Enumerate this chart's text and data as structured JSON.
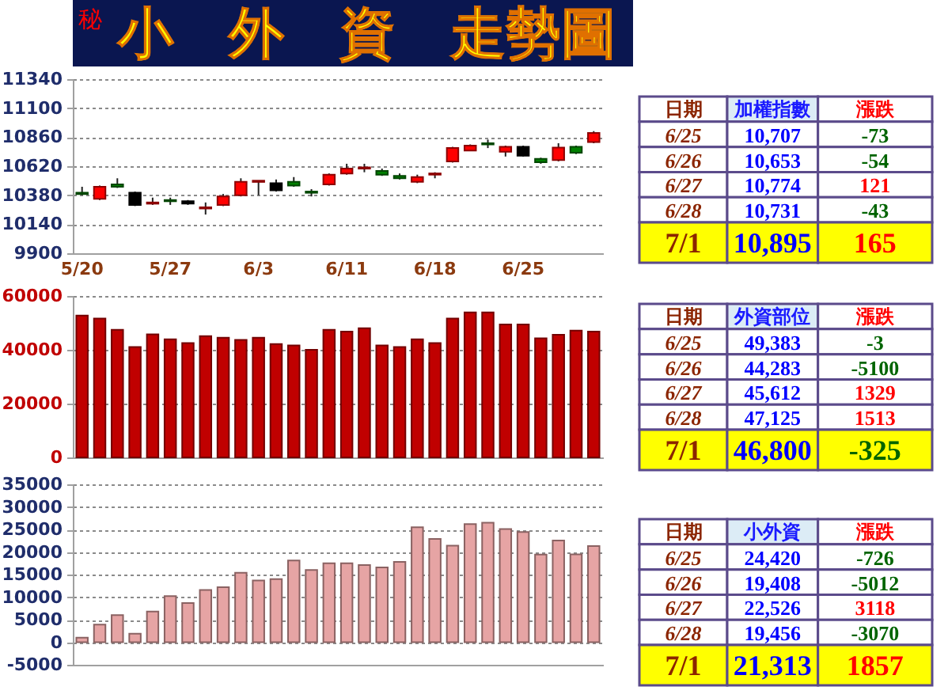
{
  "chart_data": [
    {
      "type": "candlestick",
      "title": "小　外　資　走勢圖",
      "annotations": [
        "秘"
      ],
      "categories": [
        "5/20",
        null,
        null,
        null,
        null,
        "5/27",
        null,
        null,
        null,
        null,
        "6/3",
        null,
        null,
        null,
        null,
        "6/11",
        null,
        null,
        null,
        null,
        "6/18",
        null,
        null,
        null,
        null,
        "6/25",
        null,
        null,
        null,
        null
      ],
      "ohlc": [
        [
          10400,
          10450,
          10380,
          10390
        ],
        [
          10350,
          10460,
          10340,
          10450
        ],
        [
          10470,
          10520,
          10440,
          10450
        ],
        [
          10400,
          10410,
          10290,
          10300
        ],
        [
          10310,
          10360,
          10300,
          10320
        ],
        [
          10340,
          10360,
          10300,
          10330
        ],
        [
          10330,
          10340,
          10300,
          10310
        ],
        [
          10270,
          10320,
          10220,
          10280
        ],
        [
          10300,
          10390,
          10290,
          10370
        ],
        [
          10380,
          10520,
          10370,
          10490
        ],
        [
          10490,
          10500,
          10380,
          10500
        ],
        [
          10480,
          10510,
          10410,
          10420
        ],
        [
          10490,
          10530,
          10450,
          10460
        ],
        [
          10410,
          10430,
          10370,
          10400
        ],
        [
          10470,
          10560,
          10460,
          10550
        ],
        [
          10560,
          10640,
          10550,
          10600
        ],
        [
          10600,
          10640,
          10570,
          10610
        ],
        [
          10580,
          10600,
          10540,
          10550
        ],
        [
          10540,
          10560,
          10510,
          10520
        ],
        [
          10490,
          10550,
          10480,
          10530
        ],
        [
          10550,
          10570,
          10520,
          10560
        ],
        [
          10660,
          10780,
          10650,
          10770
        ],
        [
          10750,
          10800,
          10750,
          10790
        ],
        [
          10810,
          10840,
          10770,
          10800
        ],
        [
          10740,
          10790,
          10700,
          10780
        ],
        [
          10780,
          10790,
          10700,
          10707
        ],
        [
          10680,
          10690,
          10640,
          10653
        ],
        [
          10670,
          10810,
          10660,
          10774
        ],
        [
          10780,
          10790,
          10720,
          10731
        ],
        [
          10820,
          10910,
          10810,
          10895
        ]
      ],
      "colors": [
        "#008000",
        "#ff0000",
        "#008000",
        "#000000",
        "#ff0000",
        "#008000",
        "#000000",
        "#ff0000",
        "#ff0000",
        "#ff0000",
        "#ff0000",
        "#000000",
        "#008000",
        "#008000",
        "#ff0000",
        "#ff0000",
        "#ff0000",
        "#008000",
        "#008000",
        "#ff0000",
        "#ff0000",
        "#ff0000",
        "#ff0000",
        "#008000",
        "#ff0000",
        "#000000",
        "#008000",
        "#ff0000",
        "#008000",
        "#ff0000"
      ],
      "ylim": [
        9900,
        11340
      ],
      "yticks": [
        9900,
        10140,
        10380,
        10620,
        10860,
        11100,
        11340
      ],
      "grid": "y"
    },
    {
      "type": "bar",
      "categories": [
        null,
        null,
        null,
        null,
        null,
        null,
        null,
        null,
        null,
        null,
        null,
        null,
        null,
        null,
        null,
        null,
        null,
        null,
        null,
        null,
        null,
        null,
        null,
        null,
        null,
        null,
        null,
        null,
        null,
        null
      ],
      "values": [
        52700,
        51600,
        47400,
        41000,
        45700,
        43900,
        42500,
        45100,
        44500,
        43700,
        44500,
        42100,
        41600,
        40000,
        47400,
        46800,
        48000,
        41600,
        41000,
        43900,
        42500,
        51600,
        53900,
        53900,
        49400,
        49383,
        44283,
        45612,
        47125,
        46800
      ],
      "color": "#c00000",
      "ylim": [
        0,
        60000
      ],
      "yticks": [
        0,
        20000,
        40000,
        60000
      ],
      "grid": "y",
      "tick_labels": "y"
    },
    {
      "type": "bar",
      "categories": [
        null,
        null,
        null,
        null,
        null,
        null,
        null,
        null,
        null,
        null,
        null,
        null,
        null,
        null,
        null,
        null,
        null,
        null,
        null,
        null,
        null,
        null,
        null,
        null,
        null,
        null,
        null,
        null,
        null,
        null
      ],
      "values": [
        1000,
        3900,
        6000,
        1900,
        6800,
        10200,
        8700,
        11600,
        12200,
        15400,
        13700,
        14000,
        18100,
        16000,
        17500,
        17500,
        17100,
        16600,
        17800,
        25500,
        22900,
        21400,
        26200,
        26500,
        25100,
        24420,
        19408,
        22526,
        19456,
        21313
      ],
      "color": "#e6a4a4",
      "ylim": [
        -5000,
        35000
      ],
      "yticks": [
        -5000,
        0,
        5000,
        10000,
        15000,
        20000,
        25000,
        30000,
        35000
      ],
      "grid": "y",
      "tick_labels": "y"
    },
    {
      "type": "other",
      "categories": [
        "日期",
        "加權指數",
        "漲跌"
      ],
      "cell_labels": [
        [
          "6/25",
          "10,707",
          "-73"
        ],
        [
          "6/26",
          "10,653",
          "-54"
        ],
        [
          "6/27",
          "10,774",
          "121"
        ],
        [
          "6/28",
          "10,731",
          "-43"
        ],
        [
          "7/1",
          "10,895",
          "165"
        ]
      ],
      "colors": [
        "#ffffff",
        "#dcecf6",
        "#ffffff",
        "#ffffff",
        "#ffffff",
        "#ffffff",
        "#ffffff",
        "#ffffff",
        "#ffffff",
        "#ffffff",
        "#ffffff",
        "#ffffff",
        "#ffffff",
        "#ffffff",
        "#ffffff",
        "#ffff00",
        "#ffff00",
        "#ffff00"
      ]
    },
    {
      "type": "other",
      "categories": [
        "日期",
        "外資部位",
        "漲跌"
      ],
      "cell_labels": [
        [
          "6/25",
          "49,383",
          "-3"
        ],
        [
          "6/26",
          "44,283",
          "-5100"
        ],
        [
          "6/27",
          "45,612",
          "1329"
        ],
        [
          "6/28",
          "47,125",
          "1513"
        ],
        [
          "7/1",
          "46,800",
          "-325"
        ]
      ],
      "colors": [
        "#ffffff",
        "#dcecf6",
        "#ffffff",
        "#ffffff",
        "#ffffff",
        "#ffffff",
        "#ffffff",
        "#ffffff",
        "#ffffff",
        "#ffffff",
        "#ffffff",
        "#ffffff",
        "#ffffff",
        "#ffffff",
        "#ffffff",
        "#ffff00",
        "#ffff00",
        "#ffff00"
      ]
    },
    {
      "type": "other",
      "categories": [
        "日期",
        "小外資",
        "漲跌"
      ],
      "cell_labels": [
        [
          "6/25",
          "24,420",
          "-726"
        ],
        [
          "6/26",
          "19,408",
          "-5012"
        ],
        [
          "6/27",
          "22,526",
          "3118"
        ],
        [
          "6/28",
          "19,456",
          "-3070"
        ],
        [
          "7/1",
          "21,313",
          "1857"
        ]
      ],
      "colors": [
        "#ffffff",
        "#dcecf6",
        "#ffffff",
        "#ffffff",
        "#ffffff",
        "#ffffff",
        "#ffffff",
        "#ffffff",
        "#ffffff",
        "#ffffff",
        "#ffffff",
        "#ffffff",
        "#ffffff",
        "#ffffff",
        "#ffffff",
        "#ffff00",
        "#ffff00",
        "#ffff00"
      ]
    }
  ]
}
